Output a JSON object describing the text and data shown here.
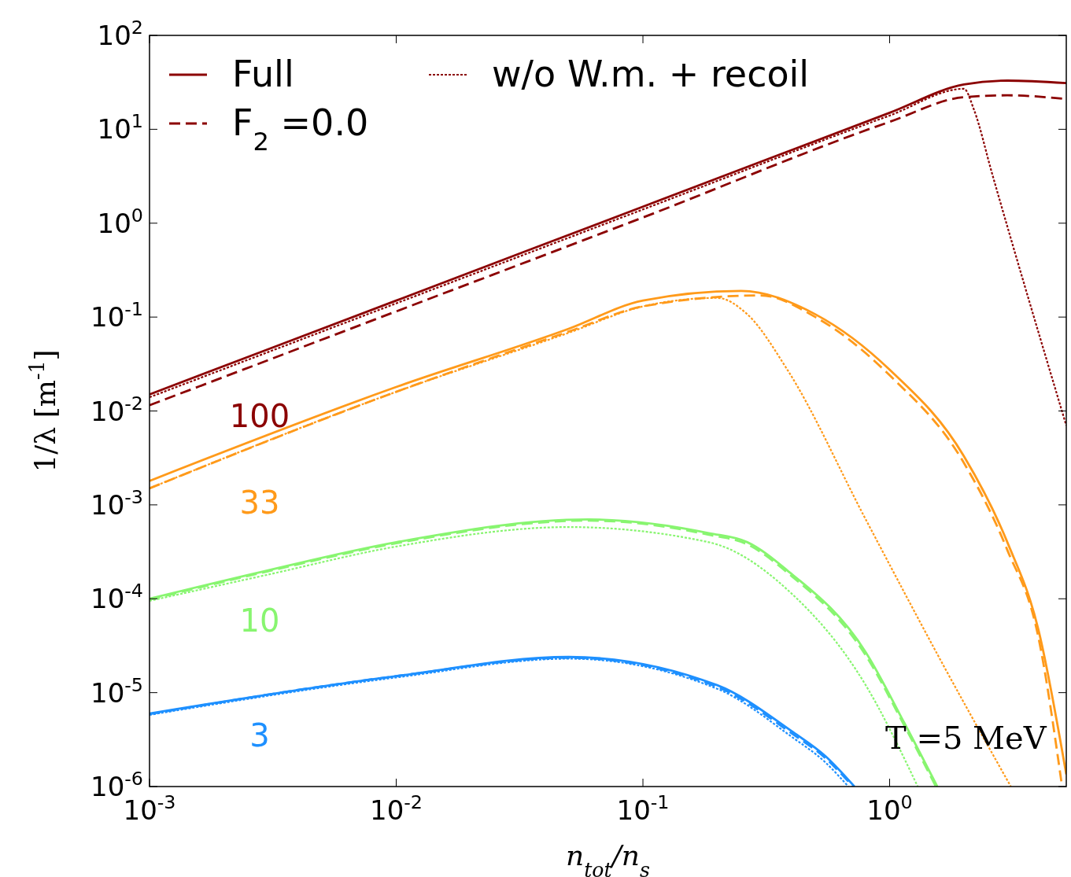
{
  "chart_data": {
    "type": "line",
    "xlabel": "n$_{tot}$/n$_{s}$",
    "ylabel": "1/λ [m$^{-1}$]",
    "log": "xy",
    "xlim": [
      0.001,
      5.2
    ],
    "ylim": [
      1e-06,
      100
    ],
    "xticks": [
      {
        "value": 0.001,
        "label": "10$^{-3}$"
      },
      {
        "value": 0.01,
        "label": "10$^{-2}$"
      },
      {
        "value": 0.1,
        "label": "10$^{-1}$"
      },
      {
        "value": 1,
        "label": "10$^{0}$"
      }
    ],
    "yticks": [
      {
        "value": 1e-06,
        "label": "10$^{-6}$"
      },
      {
        "value": 1e-05,
        "label": "10$^{-5}$"
      },
      {
        "value": 0.0001,
        "label": "10$^{-4}$"
      },
      {
        "value": 0.001,
        "label": "10$^{-3}$"
      },
      {
        "value": 0.01,
        "label": "10$^{-2}$"
      },
      {
        "value": 0.1,
        "label": "10$^{-1}$"
      },
      {
        "value": 1,
        "label": "10$^{0}$"
      },
      {
        "value": 10,
        "label": "10$^{1}$"
      },
      {
        "value": 100,
        "label": "10$^{2}$"
      }
    ],
    "legend": "top left",
    "grid": false,
    "series": [
      {
        "name": "Full",
        "color": "#8b0000",
        "line_style": "solid",
        "x": [
          0.001,
          0.01,
          0.1,
          1,
          2,
          3,
          5.2
        ],
        "values": [
          0.015,
          0.15,
          1.5,
          15,
          30,
          33,
          31
        ]
      },
      {
        "name": "F$_{2}$ =0.0",
        "color": "#8b0000",
        "line_style": "dashed",
        "x": [
          0.001,
          0.01,
          0.1,
          1,
          2,
          3,
          5.2
        ],
        "values": [
          0.0115,
          0.115,
          1.15,
          12,
          22,
          23,
          21
        ]
      },
      {
        "name": "w/o W.m. + recoil",
        "color": "#8b0000",
        "line_style": "dotted",
        "x": [
          0.001,
          0.01,
          0.1,
          1,
          2,
          2.2,
          2.6,
          5.2
        ],
        "values": [
          0.014,
          0.14,
          1.4,
          14,
          27,
          16,
          3.4,
          0.007
        ]
      },
      {
        "color": "#ff9a1a",
        "line_style": "solid",
        "x": [
          0.001,
          0.01,
          0.05,
          0.1,
          0.25,
          0.5,
          1,
          2,
          3,
          4,
          5.2
        ],
        "values": [
          0.0018,
          0.018,
          0.075,
          0.15,
          0.19,
          0.107,
          0.0275,
          0.0033,
          0.0004,
          4.8e-05,
          1.35e-06
        ]
      },
      {
        "color": "#ff9a1a",
        "line_style": "dashed",
        "x": [
          0.001,
          0.01,
          0.05,
          0.1,
          0.3,
          0.5,
          1,
          2,
          3,
          4,
          5
        ],
        "values": [
          0.0015,
          0.016,
          0.07,
          0.13,
          0.17,
          0.1,
          0.024,
          0.0028,
          0.00033,
          4e-05,
          1e-06
        ]
      },
      {
        "color": "#ff9a1a",
        "line_style": "dotted",
        "x": [
          0.001,
          0.01,
          0.05,
          0.1,
          0.2,
          0.265,
          0.385,
          0.8,
          1.68,
          3.1
        ],
        "values": [
          0.0015,
          0.016,
          0.068,
          0.13,
          0.16,
          0.107,
          0.0275,
          0.0007,
          1.8e-05,
          1e-06
        ]
      },
      {
        "color": "#88f570",
        "line_style": "solid",
        "x": [
          0.001,
          0.003,
          0.01,
          0.06,
          0.185,
          0.265,
          0.385,
          0.8,
          1.15,
          1.56
        ],
        "values": [
          0.0001,
          0.0002,
          0.0004,
          0.0007,
          0.0005,
          0.0004,
          0.0002,
          2.7e-05,
          4.7e-06,
          1e-06
        ]
      },
      {
        "color": "#88f570",
        "line_style": "dashed",
        "x": [
          0.001,
          0.003,
          0.01,
          0.06,
          0.185,
          0.265,
          0.385,
          0.8,
          1.15,
          1.54
        ],
        "values": [
          9.8e-05,
          0.000195,
          0.00039,
          0.00068,
          0.00048,
          0.00038,
          0.00019,
          2.5e-05,
          4.4e-06,
          1e-06
        ]
      },
      {
        "color": "#88f570",
        "line_style": "dotted",
        "x": [
          0.001,
          0.003,
          0.01,
          0.05,
          0.185,
          0.385,
          0.8,
          1.3
        ],
        "values": [
          9.5e-05,
          0.00018,
          0.00036,
          0.00058,
          0.0004,
          0.000125,
          1.2e-05,
          1e-06
        ]
      },
      {
        "color": "#1e90ff",
        "line_style": "solid",
        "x": [
          0.001,
          0.01,
          0.05,
          0.2,
          0.4,
          0.55,
          0.72
        ],
        "values": [
          6e-06,
          1.5e-05,
          2.4e-05,
          1.2e-05,
          3.9e-06,
          2.1e-06,
          1e-06
        ]
      },
      {
        "color": "#1e90ff",
        "line_style": "dashed",
        "x": [
          0.001,
          0.01,
          0.05,
          0.2,
          0.4,
          0.55,
          0.71
        ],
        "values": [
          5.9e-06,
          1.5e-05,
          2.35e-05,
          1.15e-05,
          3.7e-06,
          2e-06,
          1e-06
        ]
      },
      {
        "color": "#1e90ff",
        "line_style": "dotted",
        "x": [
          0.001,
          0.01,
          0.05,
          0.2,
          0.4,
          0.55,
          0.68
        ],
        "values": [
          5.8e-06,
          1.45e-05,
          2.3e-05,
          1.1e-05,
          3.4e-06,
          1.8e-06,
          1e-06
        ]
      }
    ],
    "annotations": [
      "100",
      "33",
      "10",
      "3",
      "T =5 MeV"
    ]
  }
}
